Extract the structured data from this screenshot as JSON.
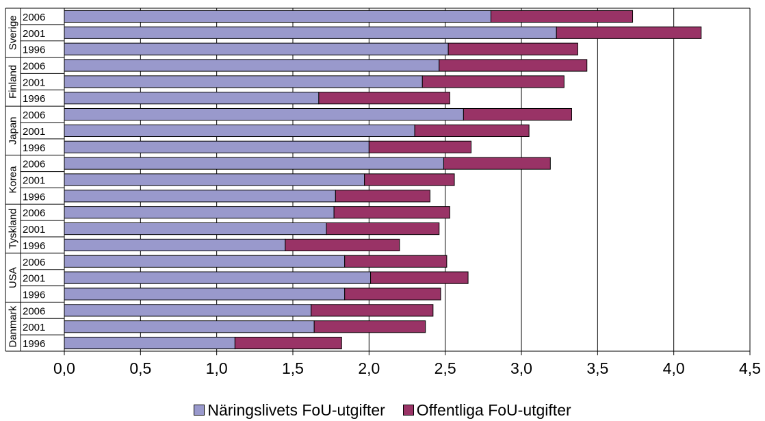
{
  "chart_data": {
    "type": "bar",
    "orientation": "horizontal",
    "stacked": true,
    "title": "",
    "xlabel": "",
    "ylabel": "",
    "xlim": [
      0,
      4.5
    ],
    "x_ticks": [
      "0,0",
      "0,5",
      "1,0",
      "1,5",
      "2,0",
      "2,5",
      "3,0",
      "3,5",
      "4,0",
      "4,5"
    ],
    "grid": "vertical",
    "legend_position": "bottom",
    "groups": [
      {
        "country": "Sverige",
        "years": [
          "2006",
          "2001",
          "1996"
        ],
        "business": [
          2.8,
          3.23,
          2.52
        ],
        "public": [
          0.93,
          0.95,
          0.85
        ]
      },
      {
        "country": "Finland",
        "years": [
          "2006",
          "2001",
          "1996"
        ],
        "business": [
          2.46,
          2.35,
          1.67
        ],
        "public": [
          0.97,
          0.93,
          0.86
        ]
      },
      {
        "country": "Japan",
        "years": [
          "2006",
          "2001",
          "1996"
        ],
        "business": [
          2.62,
          2.3,
          2.0
        ],
        "public": [
          0.71,
          0.75,
          0.67
        ]
      },
      {
        "country": "Korea",
        "years": [
          "2006",
          "2001",
          "1996"
        ],
        "business": [
          2.49,
          1.97,
          1.78
        ],
        "public": [
          0.7,
          0.59,
          0.62
        ]
      },
      {
        "country": "Tyskland",
        "years": [
          "2006",
          "2001",
          "1996"
        ],
        "business": [
          1.77,
          1.72,
          1.45
        ],
        "public": [
          0.76,
          0.74,
          0.75
        ]
      },
      {
        "country": "USA",
        "years": [
          "2006",
          "2001",
          "1996"
        ],
        "business": [
          1.84,
          2.01,
          1.84
        ],
        "public": [
          0.67,
          0.64,
          0.63
        ]
      },
      {
        "country": "Danmark",
        "years": [
          "2006",
          "2001",
          "1996"
        ],
        "business": [
          1.62,
          1.64,
          1.12
        ],
        "public": [
          0.8,
          0.73,
          0.7
        ]
      }
    ],
    "series": [
      {
        "name": "Näringslivets FoU-utgifter",
        "key": "business",
        "color": "#9999cc"
      },
      {
        "name": "Offentliga FoU-utgifter",
        "key": "public",
        "color": "#993366"
      }
    ]
  }
}
